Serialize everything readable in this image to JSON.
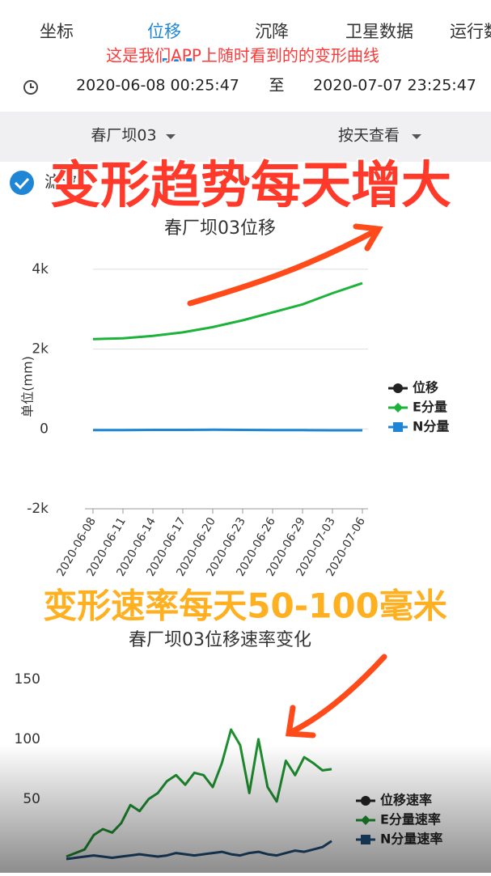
{
  "tabs": [
    "坐标",
    "位移",
    "沉降",
    "卫星数据",
    "运行数据"
  ],
  "caption": "这是我们APP上随时看到的的变形曲线",
  "start": "2020-06-08 00:25:47",
  "to": "至",
  "end": "2020-07-07 23:25:47",
  "station": "春厂坝03",
  "view": "按天查看",
  "filter": "滤波",
  "overlays": [
    "变形趋势每天增大",
    "变形速率每天50-100毫米"
  ],
  "chart_data": [
    {
      "type": "line",
      "title": "春厂坝03位移",
      "y_label": "单位(mm)",
      "categories": [
        "2020-06-08",
        "2020-06-11",
        "2020-06-14",
        "2020-06-17",
        "2020-06-20",
        "2020-06-23",
        "2020-06-26",
        "2020-06-29",
        "2020-07-03",
        "2020-07-06"
      ],
      "series": [
        {
          "name": "位移",
          "color": "#222222",
          "marker": "circle",
          "values": [
            null,
            null,
            null,
            null,
            null,
            null,
            null,
            null,
            null,
            null
          ]
        },
        {
          "name": "E分量",
          "color": "#1db33a",
          "marker": "diamond",
          "values": [
            2250,
            2270,
            2330,
            2420,
            2550,
            2720,
            2920,
            3120,
            3400,
            3650
          ]
        },
        {
          "name": "N分量",
          "color": "#1f86d6",
          "marker": "square",
          "values": [
            -30,
            -30,
            -25,
            -25,
            -20,
            -25,
            -30,
            -30,
            -35,
            -35
          ]
        }
      ],
      "ylim": [
        -2000,
        4200
      ],
      "yticks": [
        {
          "value": -2000,
          "label": "-2k"
        },
        0,
        {
          "value": 2000,
          "label": "2k"
        },
        {
          "value": 4000,
          "label": "4k"
        }
      ],
      "grid": true,
      "legend": "right"
    },
    {
      "type": "line",
      "title": "春厂坝03位移速率变化",
      "categories": [
        null,
        null,
        null,
        null,
        null,
        null,
        null,
        null,
        null,
        null,
        null,
        null,
        null,
        null,
        null,
        null,
        null,
        null,
        null,
        null,
        null,
        null,
        null,
        null,
        null,
        null,
        null,
        null,
        null,
        null
      ],
      "series": [
        {
          "name": "位移速率",
          "color": "#222222",
          "marker": "circle",
          "values": [
            null,
            null,
            null,
            null,
            null,
            null,
            null,
            null,
            null,
            null,
            null,
            null,
            null,
            null,
            null,
            null,
            null,
            null,
            null,
            null,
            null,
            null,
            null,
            null,
            null,
            null,
            null,
            null,
            null,
            null
          ]
        },
        {
          "name": "E分量速率",
          "color": "#1e8f30",
          "marker": "diamond",
          "values": [
            2,
            5,
            8,
            20,
            25,
            22,
            30,
            45,
            40,
            50,
            55,
            65,
            70,
            62,
            72,
            70,
            60,
            80,
            108,
            95,
            55,
            100,
            60,
            48,
            82,
            70,
            85,
            80,
            74,
            75
          ]
        },
        {
          "name": "N分量速率",
          "color": "#1f4e79",
          "marker": "square",
          "values": [
            0,
            1,
            2,
            3,
            2,
            1,
            2,
            3,
            4,
            3,
            2,
            3,
            5,
            4,
            3,
            4,
            5,
            6,
            4,
            3,
            5,
            6,
            4,
            3,
            5,
            7,
            6,
            8,
            10,
            15
          ]
        }
      ],
      "ylim": [
        0,
        160
      ],
      "yticks": [
        50,
        100,
        150
      ],
      "grid": false,
      "legend": "right"
    }
  ]
}
